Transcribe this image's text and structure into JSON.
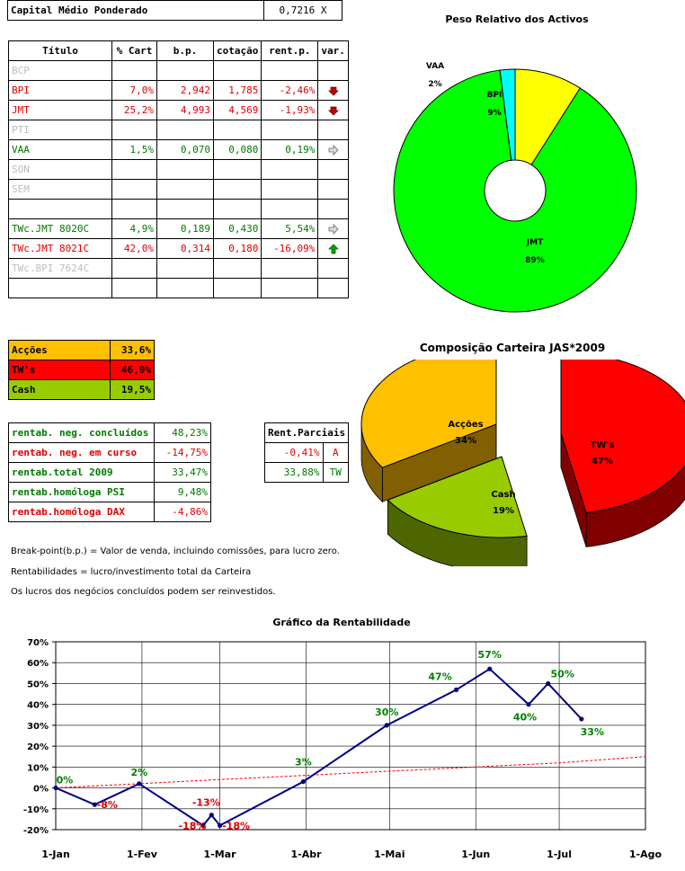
{
  "capital": {
    "label": "Capital Médio Ponderado",
    "value": "0,7216 X"
  },
  "portfolio": {
    "headers": [
      "Título",
      "% Cart",
      "b.p.",
      "cotação",
      "rent.p.",
      "var."
    ],
    "rows": [
      {
        "titulo": "BCP",
        "cart": "",
        "bp": "",
        "cot": "",
        "rent": "",
        "var": "",
        "style": "gry"
      },
      {
        "titulo": "BPI",
        "cart": "7,0%",
        "bp": "2,942",
        "cot": "1,785",
        "rent": "-2,46%",
        "var": "down",
        "style": "red"
      },
      {
        "titulo": "JMT",
        "cart": "25,2%",
        "bp": "4,993",
        "cot": "4,569",
        "rent": "-1,93%",
        "var": "down",
        "style": "red"
      },
      {
        "titulo": "PTI",
        "cart": "",
        "bp": "",
        "cot": "",
        "rent": "",
        "var": "",
        "style": "gry"
      },
      {
        "titulo": "VAA",
        "cart": "1,5%",
        "bp": "0,070",
        "cot": "0,080",
        "rent": "0,19%",
        "var": "right",
        "style": "grn"
      },
      {
        "titulo": "SON",
        "cart": "",
        "bp": "",
        "cot": "",
        "rent": "",
        "var": "",
        "style": "gry"
      },
      {
        "titulo": "SEM",
        "cart": "",
        "bp": "",
        "cot": "",
        "rent": "",
        "var": "",
        "style": "gry"
      },
      {
        "titulo": "",
        "cart": "",
        "bp": "",
        "cot": "",
        "rent": "",
        "var": "",
        "style": ""
      },
      {
        "titulo": "TWc.JMT 8020C",
        "cart": "4,9%",
        "bp": "0,189",
        "cot": "0,430",
        "rent": "5,54%",
        "var": "right",
        "style": "grn"
      },
      {
        "titulo": "TWc.JMT 8021C",
        "cart": "42,0%",
        "bp": "0,314",
        "cot": "0,180",
        "rent": "-16,09%",
        "var": "up",
        "style": "red"
      },
      {
        "titulo": "TWc.BPI 7624C",
        "cart": "",
        "bp": "",
        "cot": "",
        "rent": "",
        "var": "",
        "style": "gry"
      },
      {
        "titulo": "",
        "cart": "",
        "bp": "",
        "cot": "",
        "rent": "",
        "var": "",
        "style": ""
      }
    ]
  },
  "composition": [
    {
      "label": "Acções",
      "value": "33,6%",
      "color": "#ffc000",
      "text": "#000000"
    },
    {
      "label": "TW's",
      "value": "46,9%",
      "color": "#ff0000",
      "text": "#000000"
    },
    {
      "label": "Cash",
      "value": "19,5%",
      "color": "#99cc00",
      "text": "#000000"
    }
  ],
  "returns": [
    {
      "label": "rentab. neg. concluídos",
      "value": "48,23%",
      "style": "grn"
    },
    {
      "label": "rentab. neg. em curso",
      "value": "-14,75%",
      "style": "red"
    },
    {
      "label": "rentab.total 2009",
      "value": "33,47%",
      "style": "grn"
    },
    {
      "label": "rentab.homóloga PSI",
      "value": "9,48%",
      "style": "grn"
    },
    {
      "label": "rentab.homóloga DAX",
      "value": "-4,86%",
      "style": "red"
    }
  ],
  "partials": {
    "header": "Rent.Parciais",
    "rows": [
      {
        "value": "-0,41%",
        "tag": "A",
        "style": "red"
      },
      {
        "value": "33,88%",
        "tag": "TW",
        "style": "grn"
      }
    ]
  },
  "notes": [
    "Break-point(b.p.) = Valor de venda, incluindo comissões, para lucro zero.",
    "Rentabilidades = lucro/investimento total da Carteira",
    "Os lucros dos negócios concluídos podem ser reinvestidos."
  ],
  "chart_data": [
    {
      "type": "pie",
      "variant": "doughnut",
      "title": "Peso Relativo dos Activos",
      "slices": [
        {
          "label": "BPI",
          "value": 9,
          "display": "9%",
          "color": "#ffff00"
        },
        {
          "label": "JMT",
          "value": 89,
          "display": "89%",
          "color": "#00ff00"
        },
        {
          "label": "VAA",
          "value": 2,
          "display": "2%",
          "color": "#00ffff"
        }
      ]
    },
    {
      "type": "pie",
      "variant": "3d-exploded",
      "title": "Composição Carteira JAS*2009",
      "slices": [
        {
          "label": "Acções",
          "value": 34,
          "display": "34%",
          "color": "#ffc000"
        },
        {
          "label": "TW's",
          "value": 47,
          "display": "47%",
          "color": "#ff0000"
        },
        {
          "label": "Cash",
          "value": 19,
          "display": "19%",
          "color": "#99cc00"
        }
      ]
    },
    {
      "type": "line",
      "title": "Gráfico da Rentabilidade",
      "ylim": [
        -20,
        70
      ],
      "yticks": [
        "-20%",
        "-10%",
        "0%",
        "10%",
        "20%",
        "30%",
        "40%",
        "50%",
        "60%",
        "70%"
      ],
      "xticks": [
        "1-Jan",
        "1-Fev",
        "1-Mar",
        "1-Abr",
        "1-Mai",
        "1-Jun",
        "1-Jul",
        "1-Ago"
      ],
      "grid": true,
      "series": [
        {
          "color": "#000080",
          "points": [
            {
              "x": "2009-01-01",
              "y": 0,
              "label": "0%"
            },
            {
              "x": "2009-01-15",
              "y": -8,
              "label": "-8%"
            },
            {
              "x": "2009-01-31",
              "y": 2,
              "label": "2%"
            },
            {
              "x": "2009-02-23",
              "y": -18,
              "label": "-18%"
            },
            {
              "x": "2009-02-26",
              "y": -13,
              "label": "-13%"
            },
            {
              "x": "2009-03-01",
              "y": -18,
              "label": "-18%"
            },
            {
              "x": "2009-03-31",
              "y": 3,
              "label": "3%"
            },
            {
              "x": "2009-04-30",
              "y": 30,
              "label": "30%"
            },
            {
              "x": "2009-05-25",
              "y": 47,
              "label": "47%"
            },
            {
              "x": "2009-06-06",
              "y": 57,
              "label": "57%"
            },
            {
              "x": "2009-06-20",
              "y": 40,
              "label": "40%"
            },
            {
              "x": "2009-06-27",
              "y": 50,
              "label": "50%"
            },
            {
              "x": "2009-07-09",
              "y": 33,
              "label": "33%"
            }
          ]
        },
        {
          "type": "trend",
          "style": "dashed",
          "color": "#ff0000",
          "points": [
            {
              "x": "2009-01-01",
              "y": 0
            },
            {
              "x": "2009-03-01",
              "y": 4
            },
            {
              "x": "2009-05-01",
              "y": 8
            },
            {
              "x": "2009-07-01",
              "y": 12
            },
            {
              "x": "2009-08-01",
              "y": 15
            }
          ]
        }
      ]
    }
  ]
}
